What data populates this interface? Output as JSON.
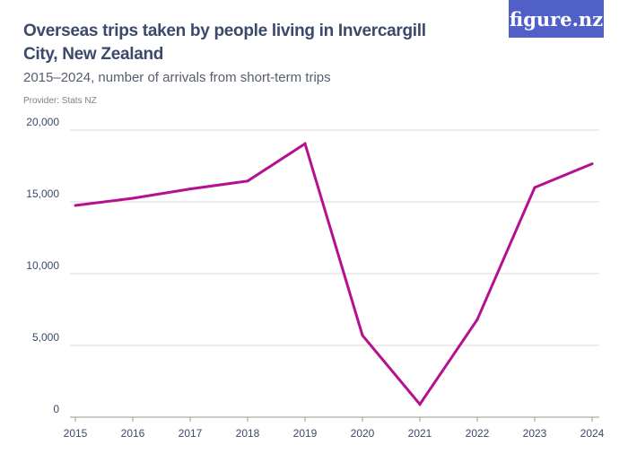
{
  "header": {
    "title": "Overseas trips taken by people living in Invercargill City, New Zealand",
    "subtitle": "2015–2024, number of arrivals from short-term trips",
    "provider": "Provider: Stats NZ",
    "logo": "figure.nz"
  },
  "chart_data": {
    "type": "line",
    "x": [
      "2015",
      "2016",
      "2017",
      "2018",
      "2019",
      "2020",
      "2021",
      "2022",
      "2023",
      "2024"
    ],
    "series": [
      {
        "values": [
          14750,
          15250,
          15900,
          16450,
          19050,
          5700,
          900,
          6800,
          16000,
          17650
        ],
        "color": "#b5118f"
      }
    ],
    "ylim": [
      0,
      20000
    ],
    "yticks": [
      0,
      5000,
      10000,
      15000,
      20000
    ],
    "ytick_labels": [
      "0",
      "5,000",
      "10,000",
      "15,000",
      "20,000"
    ],
    "grid": true,
    "xlabel": "",
    "ylabel": ""
  }
}
